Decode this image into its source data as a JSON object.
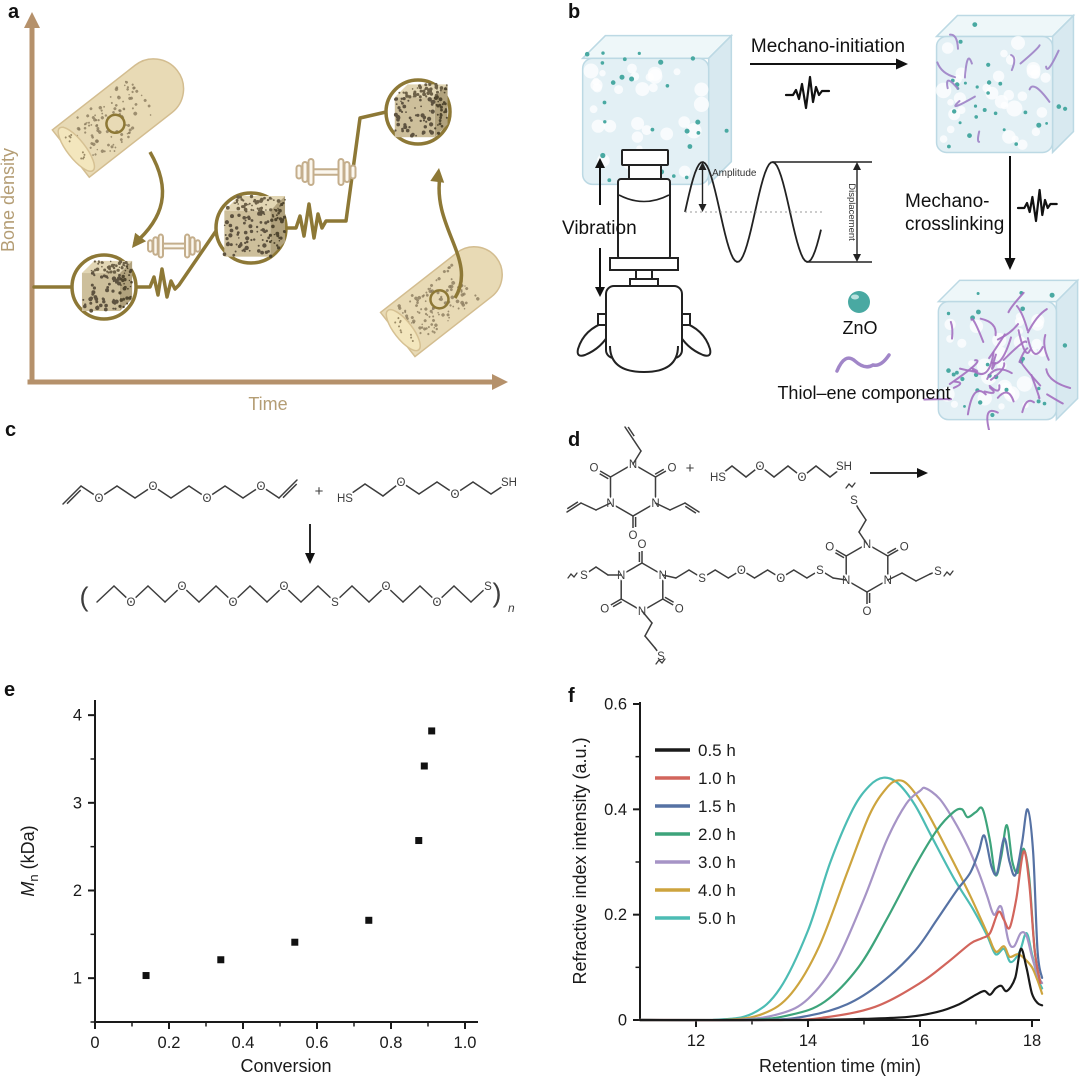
{
  "panels": {
    "a": {
      "label": "a",
      "ylabel": "Bone density",
      "xlabel": "Time"
    },
    "b": {
      "label": "b",
      "mechano_initiation": "Mechano-initiation",
      "vibration": "Vibration",
      "amplitude": "Amplitude",
      "displacement": "Displacement",
      "mechano_crosslinking_1": "Mechano-",
      "mechano_crosslinking_2": "crosslinking",
      "zno_label": "ZnO",
      "thiol_label": "Thiol–ene component",
      "zno_color": "#49a9a2",
      "thiol_color": "#a186c8"
    },
    "c": {
      "label": "c",
      "plus": "+",
      "open_paren": "(",
      "close_paren": ")",
      "repeat_subscript": "n",
      "divinyl_atoms": [
        "O",
        "O",
        "O",
        "O"
      ],
      "dithiol_atoms": [
        "HS",
        "O",
        "O",
        "SH"
      ],
      "polymer_atoms": [
        "O",
        "O",
        "O",
        "O",
        "S",
        "O",
        "O",
        "S"
      ]
    },
    "d": {
      "label": "d",
      "plus": "+",
      "nitrogen": "N",
      "oxygen": "O",
      "sulfur": "S",
      "dithiol_atoms": [
        "HS",
        "O",
        "O",
        "SH"
      ],
      "bridge_atoms": [
        "S",
        "O",
        "O",
        "S"
      ]
    },
    "e": {
      "label": "e"
    },
    "f": {
      "label": "f"
    }
  },
  "chart_data": [
    {
      "id": "e",
      "type": "scatter",
      "xlabel": "Conversion",
      "ylabel": "Mn (kDa)",
      "ylabel_parts": {
        "italic": "M",
        "sub": "n",
        "rest": " (kDa)"
      },
      "xlim": [
        0,
        1.03
      ],
      "ylim": [
        0.5,
        4.15
      ],
      "xticks": [
        0,
        0.2,
        0.4,
        0.6,
        0.8,
        1.0
      ],
      "xtick_labels": [
        "0",
        "0.2",
        "0.4",
        "0.6",
        "0.8",
        "1.0"
      ],
      "yticks": [
        1,
        2,
        3,
        4
      ],
      "ytick_labels": [
        "1",
        "2",
        "3",
        "4"
      ],
      "x_minor_ticks": [
        0.1,
        0.3,
        0.5,
        0.7,
        0.9
      ],
      "y_minor_ticks": [
        0.5,
        1.5,
        2.5,
        3.5
      ],
      "marker": "square",
      "marker_color": "#111111",
      "points": [
        [
          0.138,
          1.03
        ],
        [
          0.34,
          1.21
        ],
        [
          0.54,
          1.41
        ],
        [
          0.74,
          1.66
        ],
        [
          0.875,
          2.57
        ],
        [
          0.89,
          3.42
        ],
        [
          0.91,
          3.82
        ]
      ]
    },
    {
      "id": "f",
      "type": "line",
      "xlabel": "Retention time (min)",
      "ylabel": "Refractive index intensity (a.u.)",
      "xlim": [
        11,
        18.3
      ],
      "ylim": [
        0,
        0.6
      ],
      "xticks": [
        12,
        14,
        16,
        18
      ],
      "xtick_labels": [
        "12",
        "14",
        "16",
        "18"
      ],
      "yticks": [
        0,
        0.2,
        0.4,
        0.6
      ],
      "ytick_labels": [
        "0",
        "0.2",
        "0.4",
        "0.6"
      ],
      "x_minor_ticks": [
        13,
        15,
        17
      ],
      "y_minor_ticks": [
        0.1,
        0.3,
        0.5
      ],
      "legend_position": "upper-left",
      "series": [
        {
          "name": "0.5 h",
          "color": "#1a1a1a",
          "points": [
            [
              11,
              0
            ],
            [
              13,
              0
            ],
            [
              14,
              0
            ],
            [
              15,
              0.002
            ],
            [
              15.8,
              0.006
            ],
            [
              16.3,
              0.015
            ],
            [
              16.7,
              0.03
            ],
            [
              17.0,
              0.048
            ],
            [
              17.15,
              0.055
            ],
            [
              17.25,
              0.048
            ],
            [
              17.35,
              0.06
            ],
            [
              17.45,
              0.065
            ],
            [
              17.55,
              0.055
            ],
            [
              17.7,
              0.08
            ],
            [
              17.8,
              0.135
            ],
            [
              17.9,
              0.1
            ],
            [
              18.0,
              0.05
            ],
            [
              18.1,
              0.032
            ],
            [
              18.18,
              0.028
            ]
          ]
        },
        {
          "name": "1.0 h",
          "color": "#d2655c",
          "points": [
            [
              11,
              0
            ],
            [
              13.5,
              0
            ],
            [
              14.3,
              0.005
            ],
            [
              15.2,
              0.025
            ],
            [
              16.0,
              0.07
            ],
            [
              16.5,
              0.11
            ],
            [
              16.9,
              0.145
            ],
            [
              17.1,
              0.155
            ],
            [
              17.25,
              0.165
            ],
            [
              17.4,
              0.205
            ],
            [
              17.5,
              0.19
            ],
            [
              17.6,
              0.175
            ],
            [
              17.72,
              0.23
            ],
            [
              17.85,
              0.32
            ],
            [
              17.95,
              0.26
            ],
            [
              18.05,
              0.13
            ],
            [
              18.15,
              0.07
            ]
          ]
        },
        {
          "name": "1.5 h",
          "color": "#5672a4",
          "points": [
            [
              11,
              0
            ],
            [
              13.2,
              0
            ],
            [
              14.0,
              0.008
            ],
            [
              14.7,
              0.03
            ],
            [
              15.3,
              0.07
            ],
            [
              15.9,
              0.13
            ],
            [
              16.3,
              0.19
            ],
            [
              16.65,
              0.245
            ],
            [
              16.9,
              0.28
            ],
            [
              17.05,
              0.32
            ],
            [
              17.15,
              0.35
            ],
            [
              17.28,
              0.29
            ],
            [
              17.38,
              0.28
            ],
            [
              17.5,
              0.345
            ],
            [
              17.6,
              0.3
            ],
            [
              17.7,
              0.275
            ],
            [
              17.82,
              0.335
            ],
            [
              17.92,
              0.4
            ],
            [
              18.02,
              0.32
            ],
            [
              18.1,
              0.13
            ],
            [
              18.18,
              0.08
            ]
          ]
        },
        {
          "name": "2.0 h",
          "color": "#3da47b",
          "points": [
            [
              11,
              0
            ],
            [
              12.9,
              0
            ],
            [
              13.7,
              0.01
            ],
            [
              14.3,
              0.035
            ],
            [
              14.9,
              0.1
            ],
            [
              15.4,
              0.19
            ],
            [
              15.9,
              0.29
            ],
            [
              16.3,
              0.36
            ],
            [
              16.6,
              0.395
            ],
            [
              16.75,
              0.4
            ],
            [
              16.85,
              0.385
            ],
            [
              17.0,
              0.395
            ],
            [
              17.12,
              0.4
            ],
            [
              17.25,
              0.34
            ],
            [
              17.35,
              0.275
            ],
            [
              17.45,
              0.31
            ],
            [
              17.55,
              0.37
            ],
            [
              17.65,
              0.3
            ],
            [
              17.75,
              0.28
            ],
            [
              17.85,
              0.325
            ],
            [
              17.95,
              0.27
            ],
            [
              18.05,
              0.13
            ],
            [
              18.15,
              0.07
            ]
          ]
        },
        {
          "name": "3.0 h",
          "color": "#a694c6",
          "points": [
            [
              11,
              0
            ],
            [
              12.7,
              0
            ],
            [
              13.5,
              0.012
            ],
            [
              14.0,
              0.04
            ],
            [
              14.5,
              0.11
            ],
            [
              15.0,
              0.23
            ],
            [
              15.4,
              0.34
            ],
            [
              15.75,
              0.41
            ],
            [
              16.0,
              0.435
            ],
            [
              16.1,
              0.44
            ],
            [
              16.35,
              0.42
            ],
            [
              16.6,
              0.38
            ],
            [
              16.85,
              0.33
            ],
            [
              17.05,
              0.28
            ],
            [
              17.2,
              0.235
            ],
            [
              17.32,
              0.2
            ],
            [
              17.45,
              0.215
            ],
            [
              17.58,
              0.15
            ],
            [
              17.68,
              0.14
            ],
            [
              17.8,
              0.165
            ],
            [
              17.9,
              0.16
            ],
            [
              18.0,
              0.12
            ],
            [
              18.1,
              0.085
            ],
            [
              18.18,
              0.07
            ]
          ]
        },
        {
          "name": "4.0 h",
          "color": "#cda43e",
          "points": [
            [
              11,
              0
            ],
            [
              12.5,
              0
            ],
            [
              13.2,
              0.012
            ],
            [
              13.7,
              0.05
            ],
            [
              14.2,
              0.14
            ],
            [
              14.7,
              0.28
            ],
            [
              15.1,
              0.39
            ],
            [
              15.4,
              0.44
            ],
            [
              15.6,
              0.455
            ],
            [
              15.8,
              0.445
            ],
            [
              16.1,
              0.4
            ],
            [
              16.5,
              0.32
            ],
            [
              16.9,
              0.235
            ],
            [
              17.2,
              0.165
            ],
            [
              17.35,
              0.13
            ],
            [
              17.5,
              0.14
            ],
            [
              17.6,
              0.12
            ],
            [
              17.75,
              0.125
            ],
            [
              17.88,
              0.115
            ],
            [
              18.0,
              0.1
            ],
            [
              18.1,
              0.075
            ],
            [
              18.18,
              0.05
            ]
          ]
        },
        {
          "name": "5.0 h",
          "color": "#4cbcb4",
          "points": [
            [
              11,
              0
            ],
            [
              12.3,
              0
            ],
            [
              13.0,
              0.012
            ],
            [
              13.5,
              0.06
            ],
            [
              14.0,
              0.17
            ],
            [
              14.4,
              0.3
            ],
            [
              14.8,
              0.4
            ],
            [
              15.1,
              0.445
            ],
            [
              15.35,
              0.46
            ],
            [
              15.6,
              0.45
            ],
            [
              15.9,
              0.41
            ],
            [
              16.2,
              0.35
            ],
            [
              16.6,
              0.27
            ],
            [
              16.95,
              0.21
            ],
            [
              17.2,
              0.16
            ],
            [
              17.35,
              0.125
            ],
            [
              17.5,
              0.135
            ],
            [
              17.62,
              0.11
            ],
            [
              17.78,
              0.13
            ],
            [
              17.9,
              0.165
            ],
            [
              18.0,
              0.125
            ],
            [
              18.1,
              0.08
            ],
            [
              18.18,
              0.06
            ]
          ]
        }
      ]
    }
  ]
}
